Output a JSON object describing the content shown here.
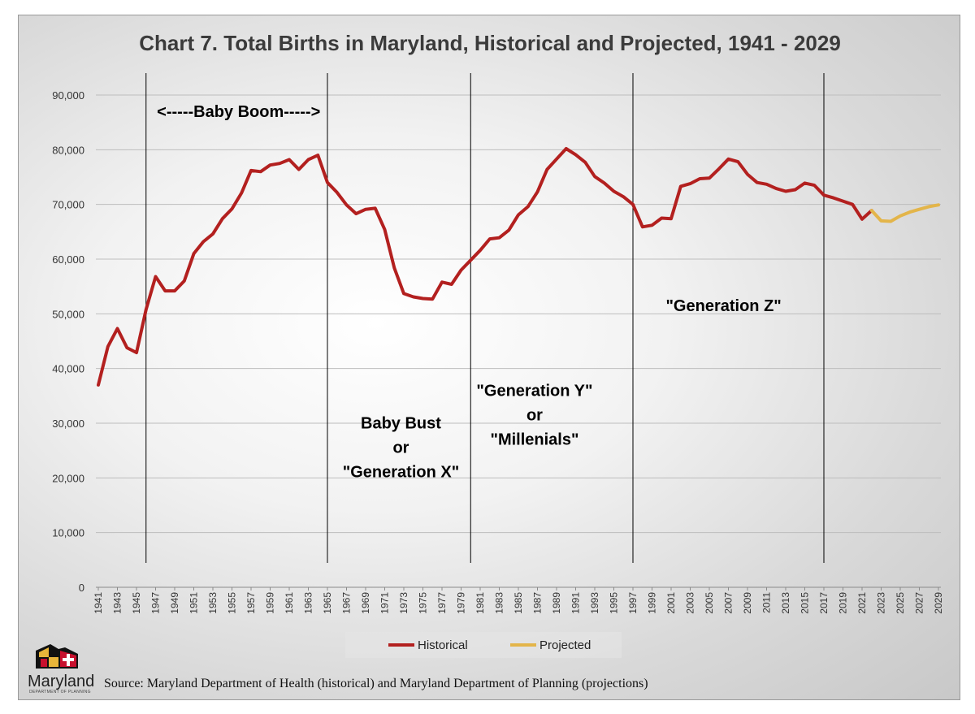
{
  "chart_data": {
    "type": "line",
    "title": "Chart 7.  Total Births in Maryland, Historical and Projected, 1941 - 2029",
    "xlabel": "",
    "ylabel": "",
    "ylim": [
      0,
      90000
    ],
    "yticks": [
      0,
      10000,
      20000,
      30000,
      40000,
      50000,
      60000,
      70000,
      80000,
      90000
    ],
    "ytick_labels": [
      "0",
      "10,000",
      "20,000",
      "30,000",
      "40,000",
      "50,000",
      "60,000",
      "70,000",
      "80,000",
      "90,000"
    ],
    "xlim": [
      1941,
      2029
    ],
    "xtick_labels": [
      "1941",
      "1943",
      "1945",
      "1947",
      "1949",
      "1951",
      "1953",
      "1955",
      "1957",
      "1959",
      "1961",
      "1963",
      "1965",
      "1967",
      "1969",
      "1971",
      "1973",
      "1975",
      "1977",
      "1979",
      "1981",
      "1983",
      "1985",
      "1987",
      "1989",
      "1991",
      "1993",
      "1995",
      "1997",
      "1999",
      "2001",
      "2003",
      "2005",
      "2007",
      "2009",
      "2011",
      "2013",
      "2015",
      "2017",
      "2019",
      "2021",
      "2023",
      "2025",
      "2027",
      "2029"
    ],
    "grid": true,
    "legend_position": "bottom",
    "series": [
      {
        "name": "Historical",
        "color": "#b3201f",
        "x": [
          1941,
          1942,
          1943,
          1944,
          1945,
          1946,
          1947,
          1948,
          1949,
          1950,
          1951,
          1952,
          1953,
          1954,
          1955,
          1956,
          1957,
          1958,
          1959,
          1960,
          1961,
          1962,
          1963,
          1964,
          1965,
          1966,
          1967,
          1968,
          1969,
          1970,
          1971,
          1972,
          1973,
          1974,
          1975,
          1976,
          1977,
          1978,
          1979,
          1980,
          1981,
          1982,
          1983,
          1984,
          1985,
          1986,
          1987,
          1988,
          1989,
          1990,
          1991,
          1992,
          1993,
          1994,
          1995,
          1996,
          1997,
          1998,
          1999,
          2000,
          2001,
          2002,
          2003,
          2004,
          2005,
          2006,
          2007,
          2008,
          2009,
          2010,
          2011,
          2012,
          2013,
          2014,
          2015,
          2016,
          2017,
          2018,
          2019,
          2020,
          2021,
          2022
        ],
        "values": [
          37000,
          44000,
          47300,
          43800,
          42900,
          50800,
          56800,
          54200,
          54200,
          56000,
          61000,
          63200,
          64600,
          67400,
          69200,
          72100,
          76200,
          76000,
          77200,
          77500,
          78200,
          76400,
          78200,
          79000,
          74000,
          72200,
          69900,
          68300,
          69100,
          69300,
          65400,
          58400,
          53700,
          53100,
          52800,
          52700,
          55800,
          55400,
          58000,
          59800,
          61600,
          63700,
          63900,
          65300,
          68100,
          69600,
          72300,
          76400,
          78300,
          80200,
          79100,
          77700,
          75100,
          73900,
          72400,
          71400,
          70000,
          65900,
          66200,
          67500,
          67400,
          73300,
          73800,
          74700,
          74800,
          76500,
          78300,
          77800,
          75500,
          74000,
          73700,
          72900,
          72400,
          72700,
          73900,
          73500,
          71700,
          71200,
          70600,
          70000,
          67300,
          68900
        ]
      },
      {
        "name": "Projected",
        "color": "#e3b54a",
        "x": [
          2022,
          2023,
          2024,
          2025,
          2026,
          2027,
          2028,
          2029
        ],
        "values": [
          68900,
          67000,
          66900,
          67900,
          68600,
          69100,
          69600,
          69900
        ]
      }
    ],
    "generation_dividers": [
      1946,
      1965,
      1980,
      1997,
      2017
    ],
    "annotations": [
      {
        "id": "baby-boom",
        "lines": [
          "<-----Baby Boom----->"
        ],
        "x": 1955.7,
        "y": 86000
      },
      {
        "id": "baby-bust",
        "lines": [
          "Baby Bust",
          "or",
          "\"Generation X\""
        ],
        "x": 1972.7,
        "y": 29000
      },
      {
        "id": "generation-y",
        "lines": [
          "\"Generation Y\"",
          "or",
          "\"Millenials\""
        ],
        "x": 1986.7,
        "y": 35000
      },
      {
        "id": "generation-z",
        "lines": [
          "\"Generation Z\""
        ],
        "x": 2006.5,
        "y": 50500
      }
    ],
    "source": "Source: Maryland Department of Health (historical) and Maryland Department of Planning (projections)"
  },
  "branding": {
    "logo_text": "Maryland",
    "logo_subtext": "DEPARTMENT OF PLANNING",
    "colors": {
      "black": "#111111",
      "gold": "#e8b53a",
      "red": "#c8102e",
      "white": "#ffffff"
    }
  }
}
